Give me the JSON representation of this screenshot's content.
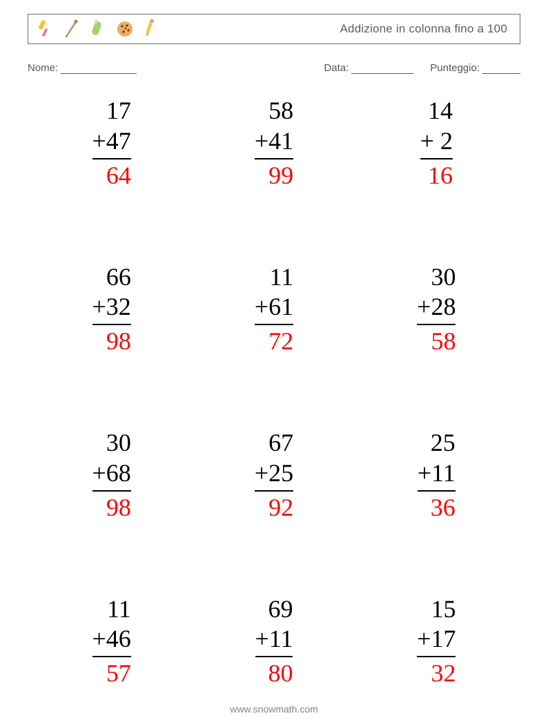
{
  "header": {
    "title": "Addizione in colonna fino a 100",
    "icons": [
      "paintbrush",
      "brush",
      "marker",
      "cookie",
      "pencil"
    ]
  },
  "info": {
    "name_label": "Nome:",
    "date_label": "Data:",
    "score_label": "Punteggio:",
    "name_blank_width": 110,
    "date_blank_width": 90,
    "score_blank_width": 55
  },
  "style": {
    "problem_fontsize": 36,
    "problem_color": "#000000",
    "answer_color": "#fb0404",
    "rule_color": "#000000",
    "title_color": "#5d5d5d",
    "label_color": "#565656",
    "footer_color": "#858585",
    "border_color": "#716e6e",
    "background": "#ffffff"
  },
  "problems": [
    {
      "a": "17",
      "b": "47",
      "ans": "64"
    },
    {
      "a": "58",
      "b": "41",
      "ans": "99"
    },
    {
      "a": "14",
      "b": " 2",
      "ans": "16"
    },
    {
      "a": "66",
      "b": "32",
      "ans": "98"
    },
    {
      "a": "11",
      "b": "61",
      "ans": "72"
    },
    {
      "a": "30",
      "b": "28",
      "ans": "58"
    },
    {
      "a": "30",
      "b": "68",
      "ans": "98"
    },
    {
      "a": "67",
      "b": "25",
      "ans": "92"
    },
    {
      "a": "25",
      "b": "11",
      "ans": "36"
    },
    {
      "a": "11",
      "b": "46",
      "ans": "57"
    },
    {
      "a": "69",
      "b": "11",
      "ans": "80"
    },
    {
      "a": "15",
      "b": "17",
      "ans": "32"
    }
  ],
  "footer": {
    "url": "www.snowmath.com"
  }
}
